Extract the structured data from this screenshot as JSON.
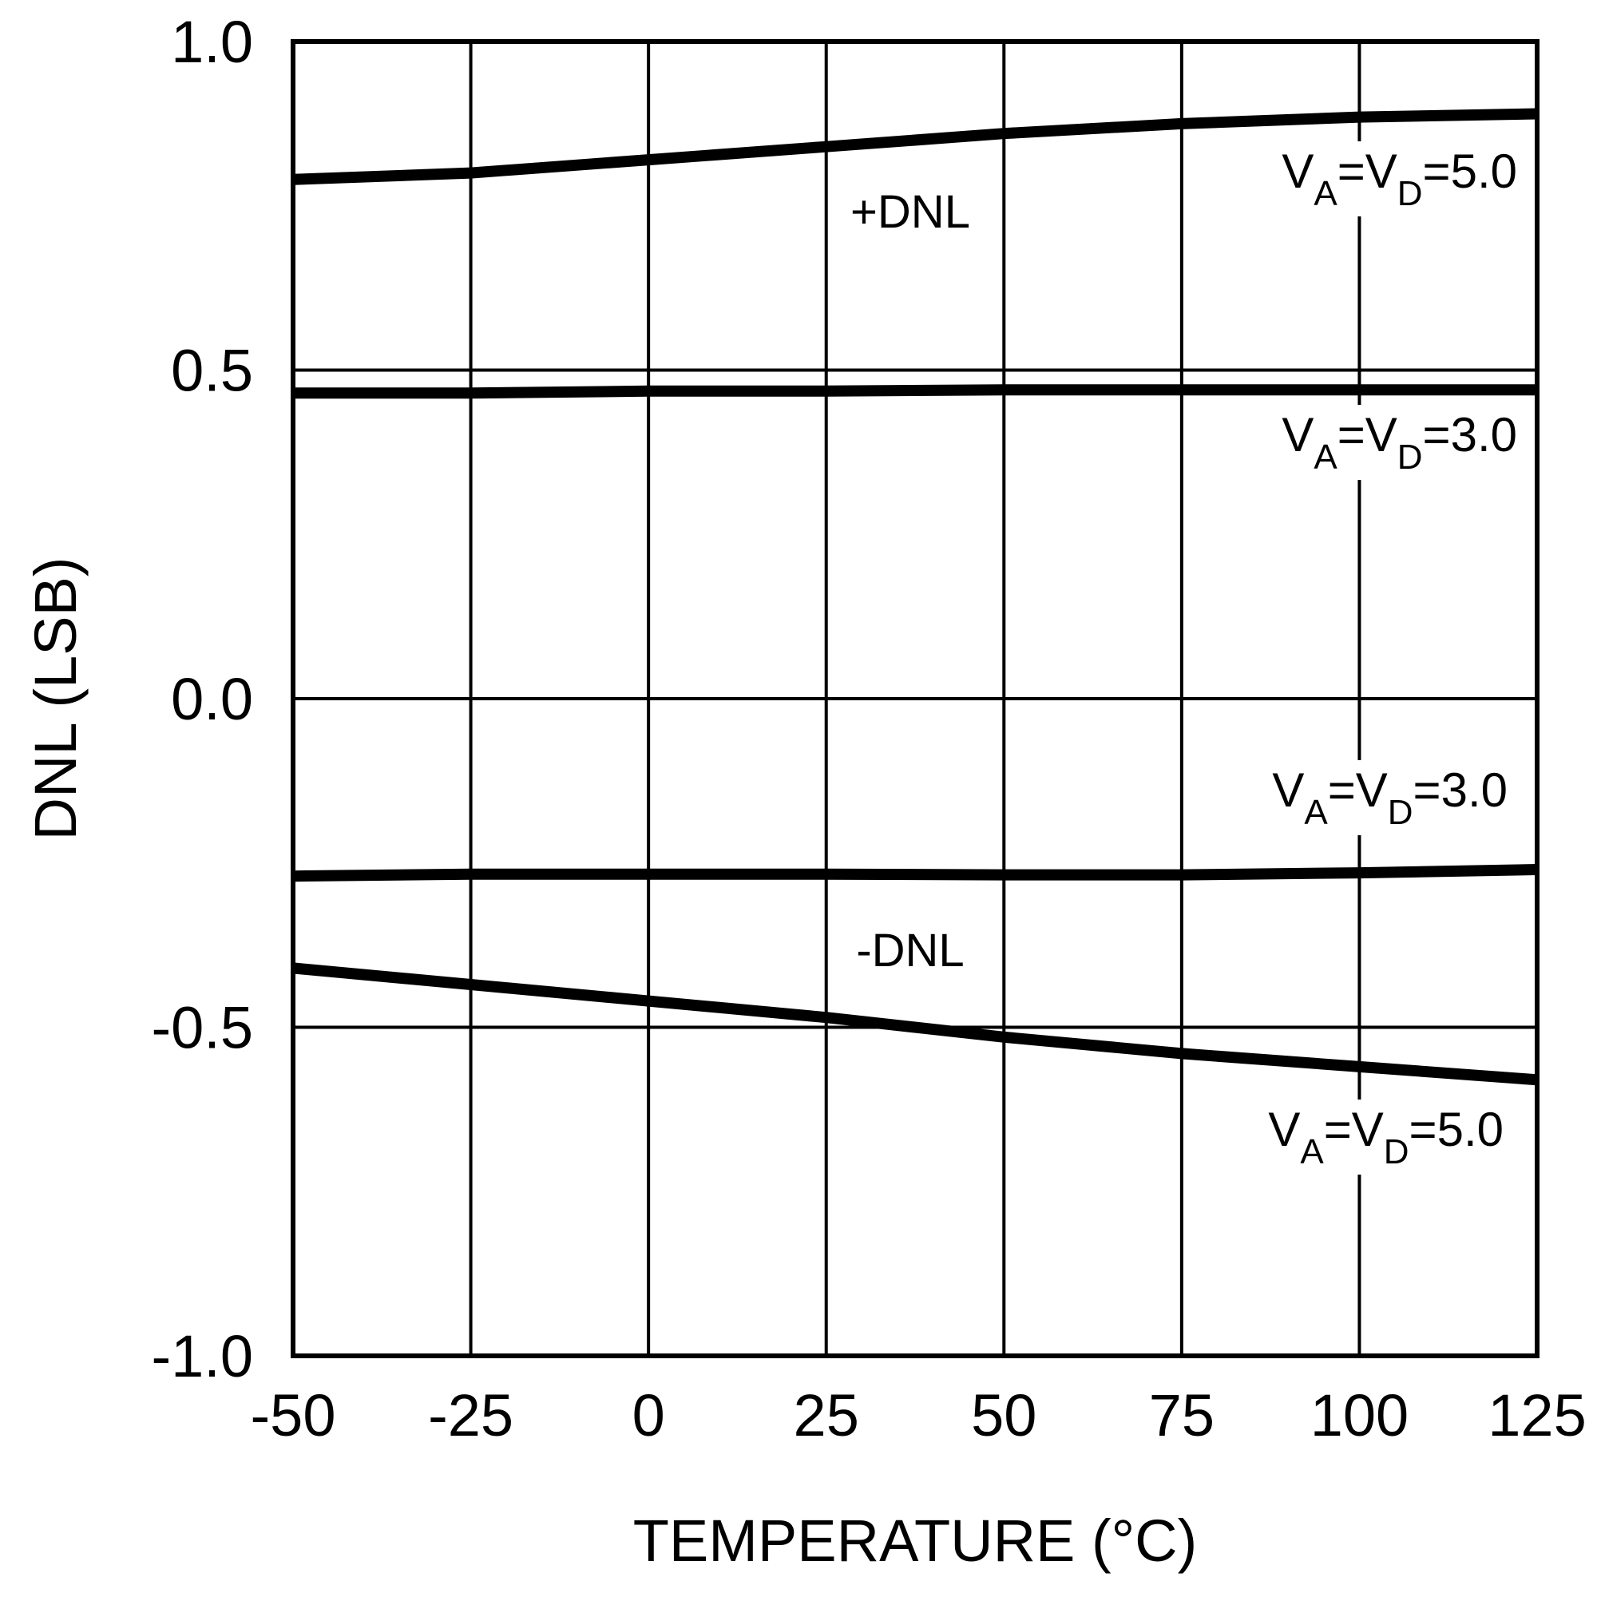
{
  "chart_data": {
    "type": "line",
    "title": "",
    "xlabel": "TEMPERATURE (°C)",
    "ylabel": "DNL (LSB)",
    "xlim": [
      -50,
      125
    ],
    "ylim": [
      -1.0,
      1.0
    ],
    "x_ticks": [
      -50,
      -25,
      0,
      25,
      50,
      75,
      100,
      125
    ],
    "x_tick_labels": [
      "-50",
      "-25",
      "0",
      "25",
      "50",
      "75",
      "100",
      "125"
    ],
    "y_ticks": [
      1.0,
      0.5,
      0.0,
      -0.5,
      -1.0
    ],
    "y_tick_labels": [
      "1.0",
      "0.5",
      "0.0",
      "-0.5",
      "-1.0"
    ],
    "grid": true,
    "x": [
      -50,
      -25,
      0,
      25,
      50,
      75,
      100,
      125
    ],
    "series": [
      {
        "name": "+DNL VA=VD=5.0",
        "values": [
          0.79,
          0.8,
          0.82,
          0.84,
          0.86,
          0.875,
          0.885,
          0.89
        ],
        "label": {
          "pre": "V",
          "sub1": "A",
          "mid": "=V",
          "sub2": "D",
          "post": "=5.0"
        }
      },
      {
        "name": "+DNL VA=VD=3.0",
        "values": [
          0.465,
          0.465,
          0.468,
          0.468,
          0.47,
          0.47,
          0.47,
          0.47
        ],
        "label": {
          "pre": "V",
          "sub1": "A",
          "mid": "=V",
          "sub2": "D",
          "post": "=3.0"
        }
      },
      {
        "name": "-DNL VA=VD=3.0",
        "values": [
          -0.27,
          -0.267,
          -0.267,
          -0.267,
          -0.268,
          -0.268,
          -0.265,
          -0.26
        ],
        "label": {
          "pre": "V",
          "sub1": "A",
          "mid": "=V",
          "sub2": "D",
          "post": "=3.0"
        }
      },
      {
        "name": "-DNL VA=VD=5.0",
        "values": [
          -0.41,
          -0.435,
          -0.46,
          -0.485,
          -0.515,
          -0.54,
          -0.56,
          -0.58
        ],
        "label": {
          "pre": "V",
          "sub1": "A",
          "mid": "=V",
          "sub2": "D",
          "post": "=5.0"
        }
      }
    ],
    "annotations": [
      "+DNL",
      "-DNL"
    ]
  }
}
